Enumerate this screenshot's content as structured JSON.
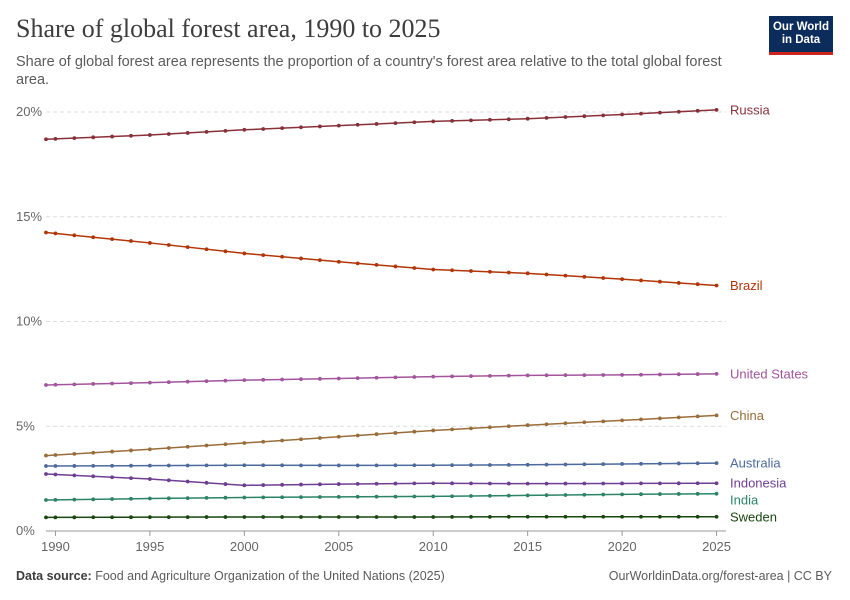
{
  "header": {
    "title": "Share of global forest area, 1990 to 2025",
    "subtitle": "Share of global forest area represents the proportion of a country's forest area relative to the total global forest area.",
    "logo_line1": "Our World",
    "logo_line2": "in Data"
  },
  "footer": {
    "source_label": "Data source:",
    "source_text": "Food and Agriculture Organization of the United Nations (2025)",
    "url_text": "OurWorldinData.org/forest-area | CC BY"
  },
  "chart_data": {
    "type": "line",
    "title": "Share of global forest area, 1990 to 2025",
    "xlabel": "",
    "ylabel": "",
    "xlim": [
      1989.5,
      2025.5
    ],
    "ylim": [
      0,
      20
    ],
    "x_ticks": [
      1990,
      1995,
      2000,
      2005,
      2010,
      2015,
      2020,
      2025
    ],
    "y_ticks": [
      0,
      5,
      10,
      15,
      20
    ],
    "y_tick_labels": [
      "0%",
      "5%",
      "10%",
      "15%",
      "20%"
    ],
    "grid": "horizontal dashed",
    "legend": "labels at line ends (right)",
    "series": [
      {
        "name": "Russia",
        "color": "#883039",
        "x": [
          1989.5,
          1995,
          2000,
          2005,
          2010,
          2015,
          2020,
          2025
        ],
        "y": [
          18.7,
          18.9,
          19.15,
          19.35,
          19.55,
          19.68,
          19.88,
          20.1
        ]
      },
      {
        "name": "Brazil",
        "color": "#b13507",
        "x": [
          1989.5,
          1995,
          2000,
          2005,
          2010,
          2015,
          2020,
          2025
        ],
        "y": [
          14.25,
          13.75,
          13.25,
          12.85,
          12.48,
          12.3,
          12.02,
          11.72
        ]
      },
      {
        "name": "United States",
        "color": "#a2559c",
        "x": [
          1989.5,
          1995,
          2000,
          2005,
          2010,
          2015,
          2020,
          2025
        ],
        "y": [
          6.97,
          7.08,
          7.2,
          7.28,
          7.37,
          7.43,
          7.45,
          7.5
        ]
      },
      {
        "name": "China",
        "color": "#996d39",
        "x": [
          1989.5,
          1995,
          2000,
          2005,
          2010,
          2015,
          2020,
          2025
        ],
        "y": [
          3.6,
          3.9,
          4.2,
          4.5,
          4.8,
          5.05,
          5.28,
          5.52
        ]
      },
      {
        "name": "Australia",
        "color": "#4c6a9c",
        "x": [
          1989.5,
          1995,
          2000,
          2005,
          2010,
          2015,
          2020,
          2025
        ],
        "y": [
          3.1,
          3.12,
          3.14,
          3.13,
          3.14,
          3.16,
          3.2,
          3.24
        ]
      },
      {
        "name": "Indonesia",
        "color": "#6d3e91",
        "x": [
          1989.5,
          1995,
          2000,
          2005,
          2010,
          2015,
          2020,
          2025
        ],
        "y": [
          2.72,
          2.48,
          2.18,
          2.24,
          2.28,
          2.26,
          2.27,
          2.28
        ]
      },
      {
        "name": "India",
        "color": "#2c8465",
        "x": [
          1989.5,
          1995,
          2000,
          2005,
          2010,
          2015,
          2020,
          2025
        ],
        "y": [
          1.48,
          1.55,
          1.6,
          1.63,
          1.65,
          1.7,
          1.75,
          1.78
        ]
      },
      {
        "name": "Sweden",
        "color": "#18470f",
        "x": [
          1989.5,
          1995,
          2000,
          2005,
          2010,
          2015,
          2020,
          2025
        ],
        "y": [
          0.65,
          0.66,
          0.67,
          0.67,
          0.67,
          0.68,
          0.68,
          0.68
        ]
      }
    ]
  }
}
